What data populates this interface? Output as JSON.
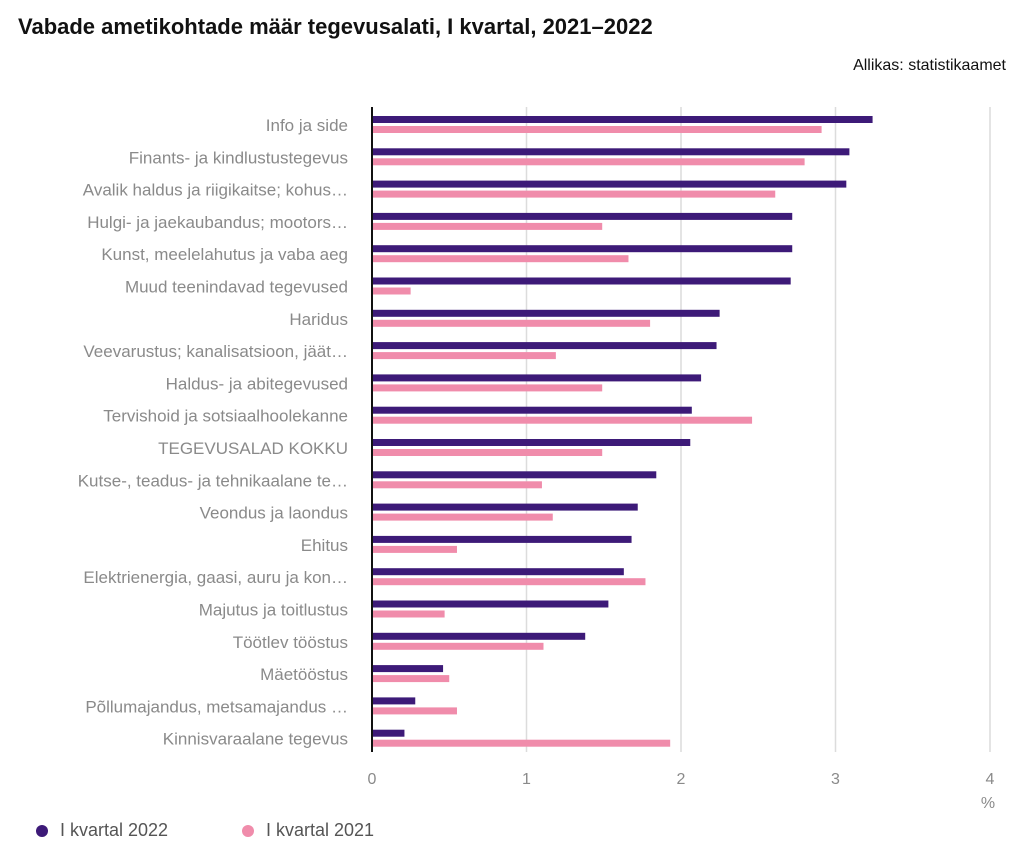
{
  "chart_data": {
    "type": "bar",
    "orientation": "horizontal",
    "title": "Vabade ametikohtade määr tegevusalati, I kvartal, 2021–2022",
    "source": "Allikas: statistikaamet",
    "xlabel": "%",
    "xlim": [
      0,
      4
    ],
    "xticks": [
      "0",
      "1",
      "2",
      "3",
      "4"
    ],
    "grid": true,
    "legend_position": "bottom-left",
    "categories": [
      "Info ja side",
      "Finants- ja kindlustustegevus",
      "Avalik haldus ja riigikaitse; kohus…",
      "Hulgi- ja jaekaubandus; mootors…",
      "Kunst, meelelahutus ja vaba aeg",
      "Muud teenindavad tegevused",
      "Haridus",
      "Veevarustus; kanalisatsioon, jäät…",
      "Haldus- ja abitegevused",
      "Tervishoid ja sotsiaalhoolekanne",
      "TEGEVUSALAD KOKKU",
      "Kutse-, teadus- ja tehnikaalane te…",
      "Veondus ja laondus",
      "Ehitus",
      "Elektrienergia, gaasi, auru ja kon…",
      "Majutus ja toitlustus",
      "Töötlev tööstus",
      "Mäetööstus",
      "Põllumajandus, metsamajandus …",
      "Kinnisvaraalane tegevus"
    ],
    "series": [
      {
        "name": "I kvartal 2022",
        "color": "#3d1a78",
        "values": [
          3.24,
          3.09,
          3.07,
          2.72,
          2.72,
          2.71,
          2.25,
          2.23,
          2.13,
          2.07,
          2.06,
          1.84,
          1.72,
          1.68,
          1.63,
          1.53,
          1.38,
          0.46,
          0.28,
          0.21
        ]
      },
      {
        "name": "I kvartal 2021",
        "color": "#f08cab",
        "values": [
          2.91,
          2.8,
          2.61,
          1.49,
          1.66,
          0.25,
          1.8,
          1.19,
          1.49,
          2.46,
          1.49,
          1.1,
          1.17,
          0.55,
          1.77,
          0.47,
          1.11,
          0.5,
          0.55,
          1.93
        ]
      }
    ]
  }
}
